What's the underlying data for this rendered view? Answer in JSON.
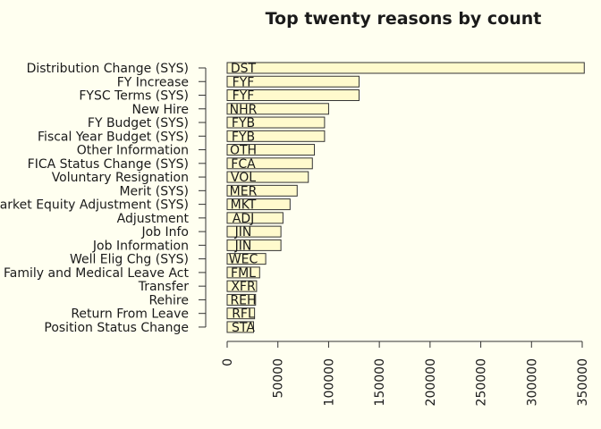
{
  "chart_data": {
    "type": "bar",
    "orientation": "horizontal",
    "title": "Top twenty reasons by count",
    "xlabel": "",
    "ylabel": "",
    "xlim": [
      0,
      350000
    ],
    "xticks": [
      0,
      50000,
      100000,
      150000,
      200000,
      250000,
      300000,
      350000
    ],
    "grid": false,
    "legend": "none",
    "bar_color": "#fffacd",
    "border_color": "#333333",
    "background": "#fffff0",
    "categories": [
      "Distribution Change (SYS)",
      "FY Increase",
      "FYSC Terms (SYS)",
      "New Hire",
      "FY Budget (SYS)",
      "Fiscal Year Budget (SYS)",
      "Other Information",
      "FICA Status Change (SYS)",
      "Voluntary Resignation",
      "Merit (SYS)",
      "Market Equity Adjustment (SYS)",
      "Adjustment",
      "Job Info",
      "Job Information",
      "Well Elig Chg (SYS)",
      "Family and Medical Leave Act",
      "Transfer",
      "Rehire",
      "Return From Leave",
      "Position Status Change"
    ],
    "codes": [
      "DST",
      "FYF",
      "FYF",
      "NHR",
      "FYB",
      "FYB",
      "OTH",
      "FCA",
      "VOL",
      "MER",
      "MKT",
      "ADJ",
      "JIN",
      "JIN",
      "WEC",
      "FML",
      "XFR",
      "REH",
      "RFL",
      "STA"
    ],
    "values": [
      352000,
      130000,
      130000,
      100000,
      96000,
      96000,
      86000,
      84000,
      80000,
      69000,
      62000,
      55000,
      53000,
      53000,
      38000,
      32000,
      29000,
      28000,
      27000,
      26000
    ]
  }
}
